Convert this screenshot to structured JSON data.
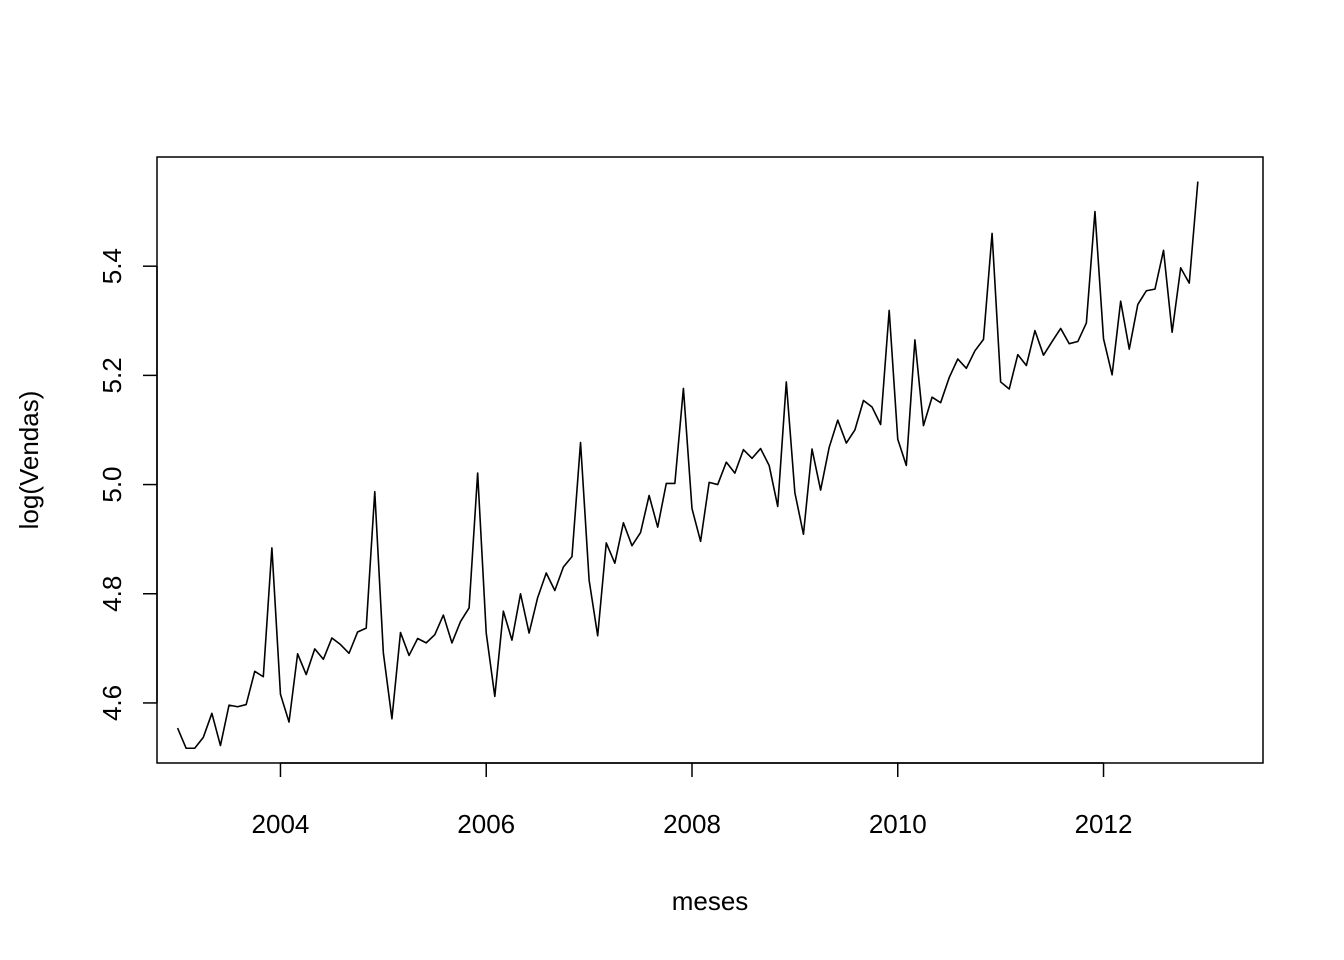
{
  "chart_data": {
    "type": "line",
    "title": "",
    "xlabel": "meses",
    "ylabel": "log(Vendas)",
    "xlim": [
      2002.8,
      2013.55
    ],
    "ylim": [
      4.49,
      5.6
    ],
    "xticks": [
      2004,
      2006,
      2008,
      2010,
      2012
    ],
    "xtick_labels": [
      "2004",
      "2006",
      "2008",
      "2010",
      "2012"
    ],
    "yticks": [
      4.6,
      4.8,
      5.0,
      5.2,
      5.4
    ],
    "ytick_labels": [
      "4.6",
      "4.8",
      "5.0",
      "5.2",
      "5.4"
    ],
    "grid": false,
    "x_start": 2003.0,
    "x_step": 0.083333,
    "series": [
      {
        "color": "#000000",
        "values": [
          4.554,
          4.517,
          4.517,
          4.537,
          4.581,
          4.522,
          4.596,
          4.593,
          4.597,
          4.658,
          4.648,
          4.884,
          4.616,
          4.565,
          4.69,
          4.652,
          4.699,
          4.68,
          4.719,
          4.707,
          4.691,
          4.73,
          4.737,
          4.987,
          4.692,
          4.571,
          4.729,
          4.687,
          4.718,
          4.71,
          4.725,
          4.761,
          4.71,
          4.749,
          4.774,
          5.021,
          4.728,
          4.612,
          4.768,
          4.715,
          4.8,
          4.728,
          4.793,
          4.838,
          4.806,
          4.849,
          4.868,
          5.077,
          4.825,
          4.723,
          4.893,
          4.856,
          4.93,
          4.888,
          4.912,
          4.98,
          4.922,
          5.002,
          5.002,
          5.176,
          4.956,
          4.896,
          5.004,
          5.0,
          5.041,
          5.021,
          5.064,
          5.048,
          5.066,
          5.035,
          4.96,
          5.188,
          4.985,
          4.909,
          5.065,
          4.99,
          5.068,
          5.118,
          5.076,
          5.1,
          5.154,
          5.142,
          5.11,
          5.319,
          5.083,
          5.035,
          5.265,
          5.108,
          5.16,
          5.15,
          5.196,
          5.23,
          5.213,
          5.245,
          5.266,
          5.46,
          5.188,
          5.175,
          5.238,
          5.218,
          5.282,
          5.237,
          5.262,
          5.286,
          5.258,
          5.262,
          5.296,
          5.5,
          5.267,
          5.201,
          5.336,
          5.248,
          5.33,
          5.355,
          5.358,
          5.429,
          5.279,
          5.397,
          5.369,
          5.555
        ]
      }
    ]
  }
}
